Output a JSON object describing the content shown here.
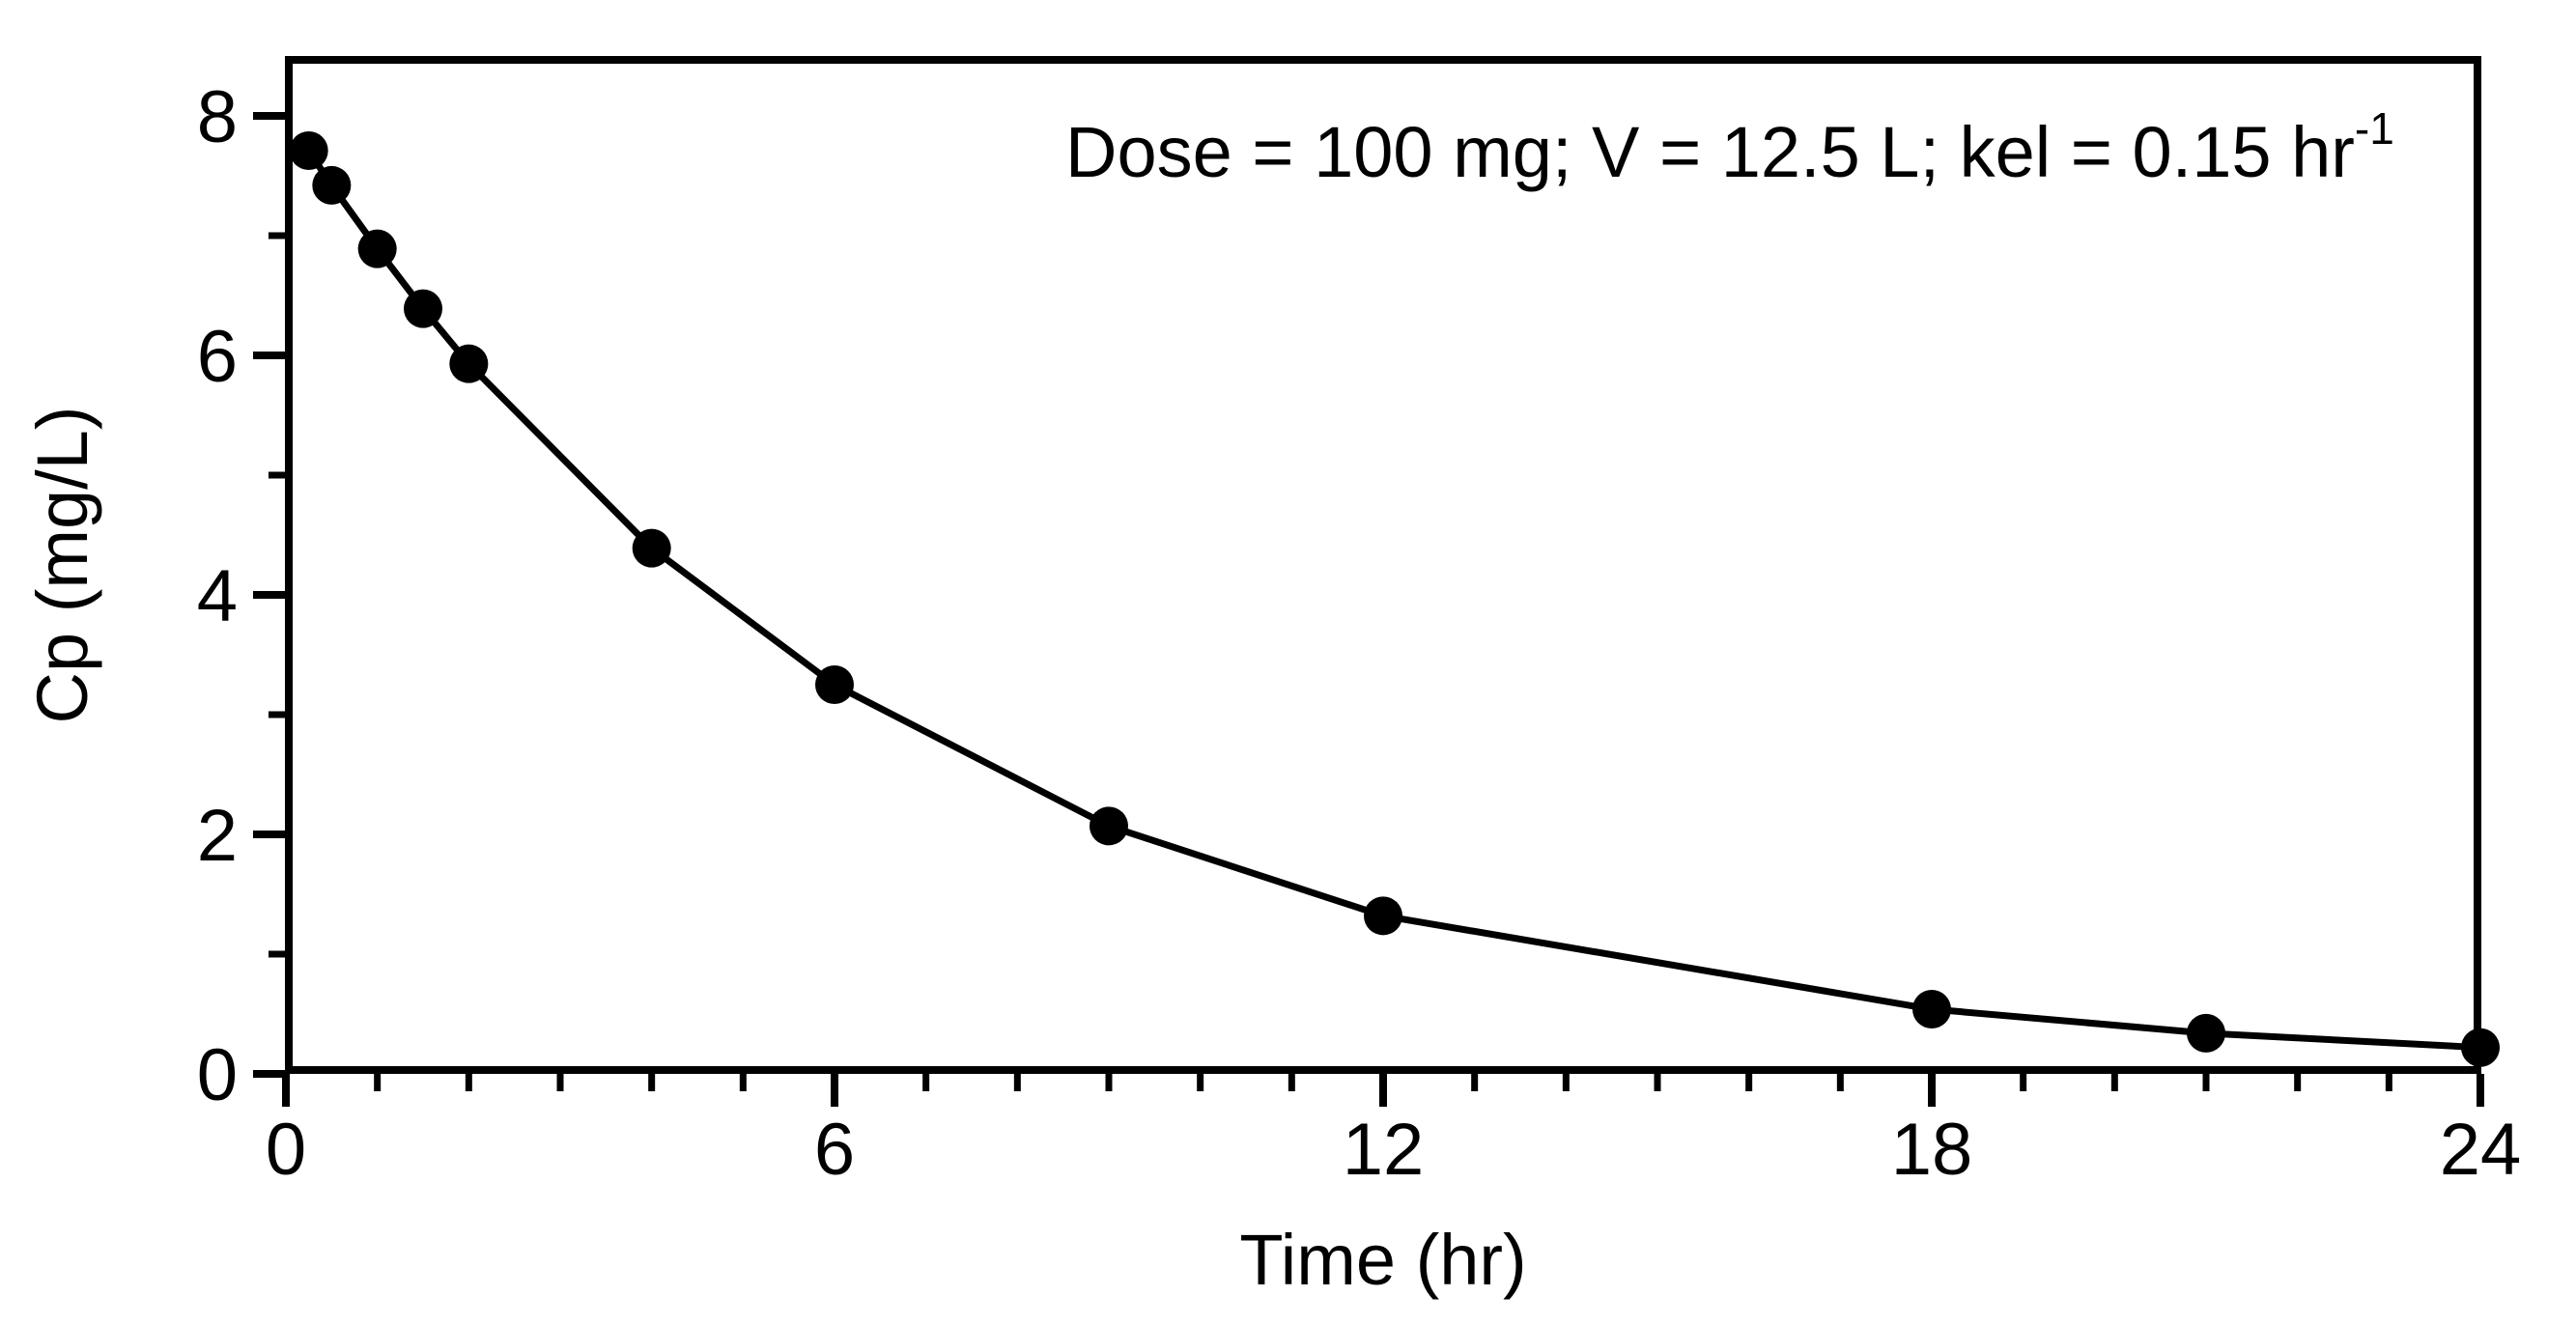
{
  "chart_data": {
    "type": "line",
    "title": "",
    "xlabel": "Time (hr)",
    "ylabel": "Cp (mg/L)",
    "xlim": [
      0,
      24
    ],
    "ylim": [
      0,
      8.5
    ],
    "x_ticks": [
      0,
      6,
      12,
      18,
      24
    ],
    "x_tick_labels": [
      "0",
      "6",
      "12",
      "18",
      "24"
    ],
    "x_minor_step": 1,
    "y_ticks": [
      0,
      2,
      4,
      6,
      8
    ],
    "y_tick_labels": [
      "0",
      "2",
      "4",
      "6",
      "8"
    ],
    "y_minor_step": 1,
    "grid": false,
    "legend": null,
    "annotation": {
      "text": "Dose = 100 mg; V = 12.5 L; kel = 0.15 hr",
      "superscript": "-1"
    },
    "series": [
      {
        "name": "Cp",
        "marker": "filled-circle",
        "line": "solid",
        "color": "#000000",
        "x": [
          0.25,
          0.5,
          1,
          1.5,
          2,
          4,
          6,
          9,
          12,
          18,
          21,
          24
        ],
        "y": [
          7.71,
          7.42,
          6.89,
          6.39,
          5.93,
          4.39,
          3.25,
          2.07,
          1.32,
          0.54,
          0.34,
          0.22
        ]
      }
    ]
  },
  "colors": {
    "background": "#ffffff",
    "ink": "#000000"
  }
}
